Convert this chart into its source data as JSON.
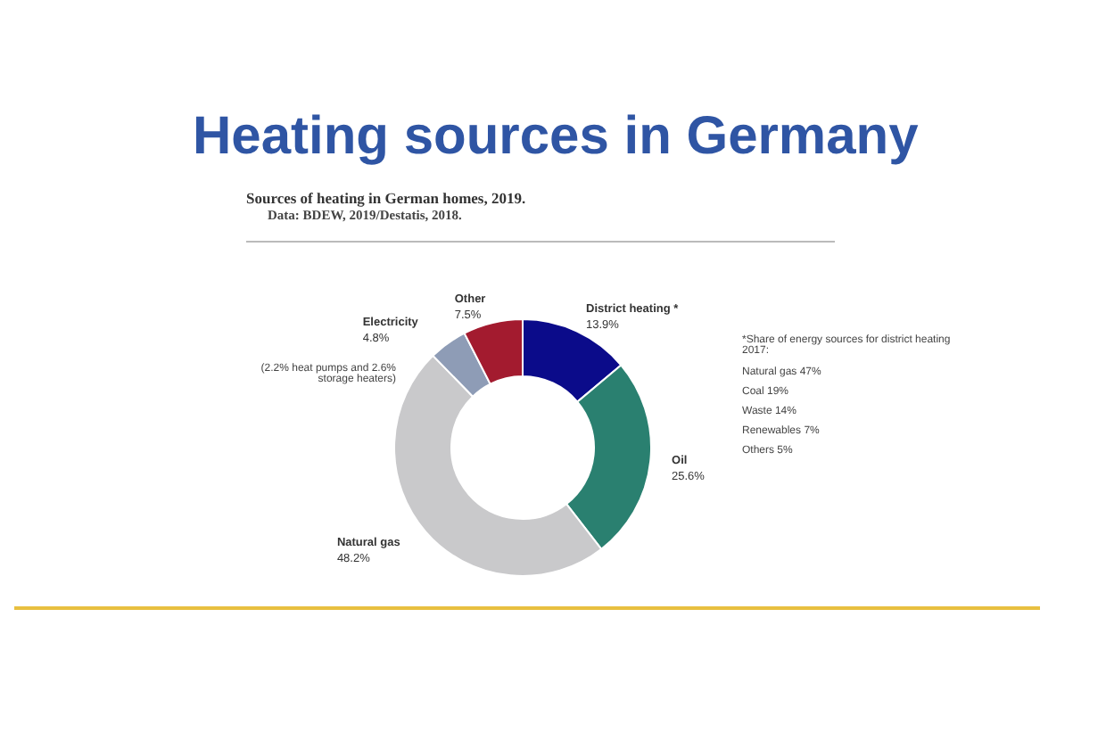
{
  "chart_data": {
    "type": "donut",
    "title": "Heating sources in Germany",
    "subtitle": "Sources of heating in German homes, 2019.",
    "categories": [
      "District heating *",
      "Oil",
      "Natural gas",
      "Electricity",
      "Other"
    ],
    "values": [
      13.9,
      25.6,
      48.2,
      4.8,
      7.5
    ],
    "value_labels": [
      "13.9%",
      "25.6%",
      "48.2%",
      "4.8%",
      "7.5%"
    ],
    "colors": [
      "#0b0b8a",
      "#2a8070",
      "#c9c9cb",
      "#8e9cb6",
      "#a31b2f"
    ],
    "annotations": [
      "Data: BDEW, 2019/Destatis, 2018.",
      "(2.2% heat pumps and 2.6% storage heaters)",
      "*Share of energy sources for district heating 2017:",
      "Natural gas 47%",
      "Coal 19%",
      "Waste 14%",
      "Renewables 7%",
      "Others 5%"
    ]
  }
}
